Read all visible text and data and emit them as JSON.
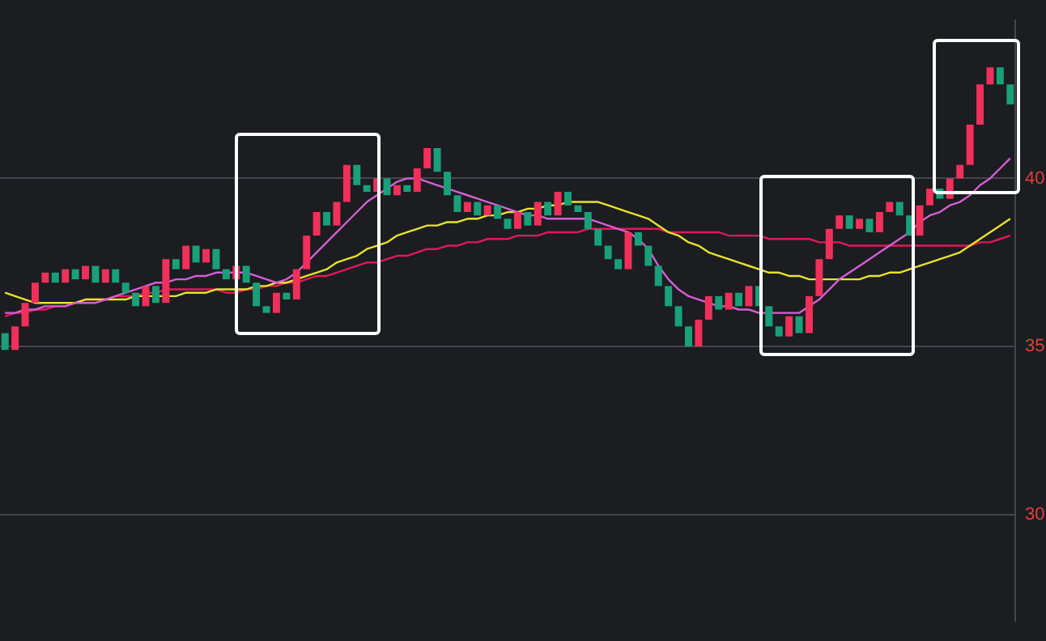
{
  "chart_data": {
    "type": "candlestick",
    "categories": [
      null,
      null,
      null,
      null,
      null,
      null,
      null,
      null,
      null,
      null,
      null,
      null,
      null,
      null,
      null,
      null,
      null,
      null,
      null,
      null,
      null,
      null,
      null,
      null,
      null,
      null,
      null,
      null,
      null,
      null,
      null,
      null,
      null,
      null,
      null,
      null,
      null,
      null,
      null,
      null,
      null,
      null,
      null,
      null,
      null,
      null,
      null,
      null,
      null,
      null,
      null,
      null,
      null,
      null,
      null,
      null,
      null,
      null,
      null,
      null,
      null,
      null,
      null,
      null,
      null,
      null,
      null,
      null,
      null,
      null,
      null,
      null,
      null,
      null,
      null,
      null,
      null,
      null,
      null,
      null,
      null,
      null,
      null,
      null,
      null,
      null,
      null,
      null,
      null,
      null,
      null,
      null,
      null,
      null,
      null,
      null,
      null,
      null,
      null,
      null,
      null
    ],
    "ohlc": [
      [
        35.4,
        35.4,
        34.9,
        34.9
      ],
      [
        34.9,
        35.6,
        34.9,
        35.6
      ],
      [
        35.6,
        36.3,
        35.6,
        36.3
      ],
      [
        36.3,
        36.9,
        36.3,
        36.9
      ],
      [
        36.9,
        37.2,
        36.9,
        37.2
      ],
      [
        37.2,
        37.2,
        36.9,
        36.9
      ],
      [
        36.9,
        37.3,
        36.9,
        37.3
      ],
      [
        37.3,
        37.3,
        37.0,
        37.0
      ],
      [
        37.0,
        37.4,
        37.0,
        37.4
      ],
      [
        37.4,
        37.4,
        36.9,
        36.9
      ],
      [
        36.9,
        37.3,
        36.9,
        37.3
      ],
      [
        37.3,
        37.3,
        36.9,
        36.9
      ],
      [
        36.9,
        36.9,
        36.6,
        36.6
      ],
      [
        36.6,
        36.6,
        36.2,
        36.2
      ],
      [
        36.2,
        36.8,
        36.2,
        36.8
      ],
      [
        36.8,
        36.8,
        36.3,
        36.3
      ],
      [
        36.3,
        37.6,
        36.3,
        37.6
      ],
      [
        37.6,
        37.6,
        37.3,
        37.3
      ],
      [
        37.3,
        38.0,
        37.3,
        38.0
      ],
      [
        38.0,
        38.0,
        37.5,
        37.5
      ],
      [
        37.5,
        37.9,
        37.5,
        37.9
      ],
      [
        37.9,
        37.9,
        37.3,
        37.3
      ],
      [
        37.3,
        37.3,
        37.0,
        37.0
      ],
      [
        37.0,
        37.4,
        37.0,
        37.4
      ],
      [
        37.4,
        37.4,
        36.9,
        36.9
      ],
      [
        36.9,
        36.9,
        36.2,
        36.2
      ],
      [
        36.2,
        36.2,
        36.0,
        36.0
      ],
      [
        36.0,
        36.6,
        36.0,
        36.6
      ],
      [
        36.6,
        36.6,
        36.4,
        36.4
      ],
      [
        36.4,
        37.3,
        36.4,
        37.3
      ],
      [
        37.3,
        38.3,
        37.3,
        38.3
      ],
      [
        38.3,
        39.0,
        38.3,
        39.0
      ],
      [
        39.0,
        39.0,
        38.6,
        38.6
      ],
      [
        38.6,
        39.3,
        38.6,
        39.3
      ],
      [
        39.3,
        40.4,
        39.3,
        40.4
      ],
      [
        40.4,
        40.4,
        39.8,
        39.8
      ],
      [
        39.8,
        39.8,
        39.6,
        39.6
      ],
      [
        39.6,
        40.0,
        39.6,
        40.0
      ],
      [
        40.0,
        40.0,
        39.5,
        39.5
      ],
      [
        39.5,
        39.8,
        39.5,
        39.8
      ],
      [
        39.8,
        39.8,
        39.6,
        39.6
      ],
      [
        39.6,
        40.3,
        39.6,
        40.3
      ],
      [
        40.3,
        40.9,
        40.3,
        40.9
      ],
      [
        40.9,
        40.9,
        40.2,
        40.2
      ],
      [
        40.2,
        40.2,
        39.5,
        39.5
      ],
      [
        39.5,
        39.5,
        39.0,
        39.0
      ],
      [
        39.0,
        39.3,
        39.0,
        39.3
      ],
      [
        39.3,
        39.3,
        38.9,
        38.9
      ],
      [
        38.9,
        39.2,
        38.9,
        39.2
      ],
      [
        39.2,
        39.2,
        38.8,
        38.8
      ],
      [
        38.8,
        38.8,
        38.5,
        38.5
      ],
      [
        38.5,
        39.0,
        38.5,
        39.0
      ],
      [
        39.0,
        39.0,
        38.6,
        38.6
      ],
      [
        38.6,
        39.3,
        38.6,
        39.3
      ],
      [
        39.3,
        39.3,
        38.9,
        38.9
      ],
      [
        38.9,
        39.6,
        38.9,
        39.6
      ],
      [
        39.6,
        39.6,
        39.2,
        39.2
      ],
      [
        39.2,
        39.2,
        39.0,
        39.0
      ],
      [
        39.0,
        39.0,
        38.5,
        38.5
      ],
      [
        38.5,
        38.5,
        38.0,
        38.0
      ],
      [
        38.0,
        38.0,
        37.6,
        37.6
      ],
      [
        37.6,
        37.6,
        37.3,
        37.3
      ],
      [
        37.3,
        38.4,
        37.3,
        38.4
      ],
      [
        38.4,
        38.4,
        38.0,
        38.0
      ],
      [
        38.0,
        38.0,
        37.4,
        37.4
      ],
      [
        37.4,
        37.4,
        36.8,
        36.8
      ],
      [
        36.8,
        36.8,
        36.2,
        36.2
      ],
      [
        36.2,
        36.2,
        35.6,
        35.6
      ],
      [
        35.6,
        35.6,
        35.0,
        35.0
      ],
      [
        35.0,
        35.8,
        35.0,
        35.8
      ],
      [
        35.8,
        36.5,
        35.8,
        36.5
      ],
      [
        36.5,
        36.5,
        36.1,
        36.1
      ],
      [
        36.1,
        36.6,
        36.1,
        36.6
      ],
      [
        36.6,
        36.6,
        36.2,
        36.2
      ],
      [
        36.2,
        36.8,
        36.2,
        36.8
      ],
      [
        36.8,
        36.8,
        36.2,
        36.2
      ],
      [
        36.2,
        36.2,
        35.6,
        35.6
      ],
      [
        35.6,
        35.6,
        35.3,
        35.3
      ],
      [
        35.3,
        35.9,
        35.3,
        35.9
      ],
      [
        35.9,
        35.9,
        35.4,
        35.4
      ],
      [
        35.4,
        36.5,
        35.4,
        36.5
      ],
      [
        36.5,
        37.6,
        36.5,
        37.6
      ],
      [
        37.6,
        38.5,
        37.6,
        38.5
      ],
      [
        38.5,
        38.9,
        38.5,
        38.9
      ],
      [
        38.9,
        38.9,
        38.5,
        38.5
      ],
      [
        38.5,
        38.8,
        38.5,
        38.8
      ],
      [
        38.8,
        38.8,
        38.4,
        38.4
      ],
      [
        38.4,
        39.0,
        38.4,
        39.0
      ],
      [
        39.0,
        39.3,
        39.0,
        39.3
      ],
      [
        39.3,
        39.3,
        38.9,
        38.9
      ],
      [
        38.9,
        38.9,
        38.3,
        38.3
      ],
      [
        38.3,
        39.2,
        38.3,
        39.2
      ],
      [
        39.2,
        39.7,
        39.2,
        39.7
      ],
      [
        39.7,
        39.7,
        39.4,
        39.4
      ],
      [
        39.4,
        40.0,
        39.4,
        40.0
      ],
      [
        40.0,
        40.4,
        40.0,
        40.4
      ],
      [
        40.4,
        41.6,
        40.4,
        41.6
      ],
      [
        41.6,
        42.8,
        41.6,
        42.8
      ],
      [
        42.8,
        43.3,
        42.8,
        43.3
      ],
      [
        43.3,
        43.3,
        42.8,
        42.8
      ],
      [
        42.8,
        42.8,
        42.2,
        42.2
      ]
    ],
    "series": [
      {
        "type": "line",
        "color": "#d65ed6",
        "values": [
          36.0,
          36.0,
          36.1,
          36.1,
          36.2,
          36.2,
          36.2,
          36.3,
          36.3,
          36.3,
          36.4,
          36.5,
          36.6,
          36.7,
          36.8,
          36.9,
          36.9,
          37.0,
          37.0,
          37.1,
          37.1,
          37.2,
          37.2,
          37.2,
          37.2,
          37.1,
          37.0,
          36.9,
          37.0,
          37.2,
          37.5,
          37.8,
          38.1,
          38.4,
          38.7,
          39.0,
          39.3,
          39.5,
          39.7,
          39.9,
          40.0,
          40.0,
          39.9,
          39.8,
          39.7,
          39.6,
          39.5,
          39.4,
          39.3,
          39.2,
          39.1,
          39.0,
          38.9,
          38.9,
          38.8,
          38.8,
          38.8,
          38.8,
          38.8,
          38.7,
          38.6,
          38.5,
          38.4,
          38.2,
          37.9,
          37.4,
          37.0,
          36.7,
          36.5,
          36.4,
          36.3,
          36.2,
          36.2,
          36.1,
          36.1,
          36.0,
          36.0,
          36.0,
          36.0,
          36.0,
          36.2,
          36.4,
          36.7,
          37.0,
          37.2,
          37.4,
          37.6,
          37.8,
          38.0,
          38.2,
          38.4,
          38.7,
          38.9,
          39.0,
          39.2,
          39.3,
          39.5,
          39.8,
          40.0,
          40.3,
          40.6
        ]
      },
      {
        "type": "line",
        "color": "#e6e32e",
        "values": [
          36.6,
          36.5,
          36.4,
          36.3,
          36.3,
          36.3,
          36.3,
          36.3,
          36.4,
          36.4,
          36.4,
          36.4,
          36.4,
          36.5,
          36.5,
          36.5,
          36.5,
          36.5,
          36.6,
          36.6,
          36.6,
          36.7,
          36.7,
          36.7,
          36.7,
          36.8,
          36.8,
          36.9,
          36.9,
          37.0,
          37.1,
          37.2,
          37.3,
          37.5,
          37.6,
          37.7,
          37.9,
          38.0,
          38.1,
          38.3,
          38.4,
          38.5,
          38.6,
          38.6,
          38.7,
          38.7,
          38.8,
          38.8,
          38.9,
          38.9,
          39.0,
          39.0,
          39.1,
          39.1,
          39.2,
          39.2,
          39.3,
          39.3,
          39.3,
          39.3,
          39.2,
          39.1,
          39.0,
          38.9,
          38.8,
          38.6,
          38.4,
          38.3,
          38.1,
          38.0,
          37.8,
          37.7,
          37.6,
          37.5,
          37.4,
          37.3,
          37.2,
          37.2,
          37.1,
          37.1,
          37.0,
          37.0,
          37.0,
          37.0,
          37.0,
          37.0,
          37.1,
          37.1,
          37.2,
          37.2,
          37.3,
          37.4,
          37.5,
          37.6,
          37.7,
          37.8,
          38.0,
          38.2,
          38.4,
          38.6,
          38.8
        ]
      },
      {
        "type": "line",
        "color": "#e0185a",
        "values": [
          35.9,
          36.0,
          36.0,
          36.1,
          36.1,
          36.2,
          36.2,
          36.3,
          36.4,
          36.4,
          36.4,
          36.5,
          36.5,
          36.5,
          36.6,
          36.6,
          36.7,
          36.7,
          36.7,
          36.7,
          36.7,
          36.7,
          36.6,
          36.6,
          36.7,
          36.7,
          36.8,
          36.8,
          36.9,
          36.9,
          37.0,
          37.1,
          37.1,
          37.2,
          37.3,
          37.4,
          37.5,
          37.5,
          37.6,
          37.7,
          37.7,
          37.8,
          37.9,
          37.9,
          38.0,
          38.0,
          38.1,
          38.1,
          38.2,
          38.2,
          38.2,
          38.3,
          38.3,
          38.3,
          38.4,
          38.4,
          38.4,
          38.4,
          38.5,
          38.5,
          38.5,
          38.5,
          38.5,
          38.5,
          38.5,
          38.5,
          38.4,
          38.4,
          38.4,
          38.4,
          38.4,
          38.4,
          38.3,
          38.3,
          38.3,
          38.3,
          38.2,
          38.2,
          38.2,
          38.2,
          38.2,
          38.1,
          38.1,
          38.1,
          38.0,
          38.0,
          38.0,
          38.0,
          38.0,
          38.0,
          38.0,
          38.0,
          38.0,
          38.0,
          38.0,
          38.0,
          38.0,
          38.1,
          38.1,
          38.2,
          38.3
        ]
      }
    ],
    "ylim": [
      26.85,
      44.7
    ],
    "yticks": [
      30,
      35,
      40
    ],
    "grid": "y",
    "tick_labels": "y"
  }
}
